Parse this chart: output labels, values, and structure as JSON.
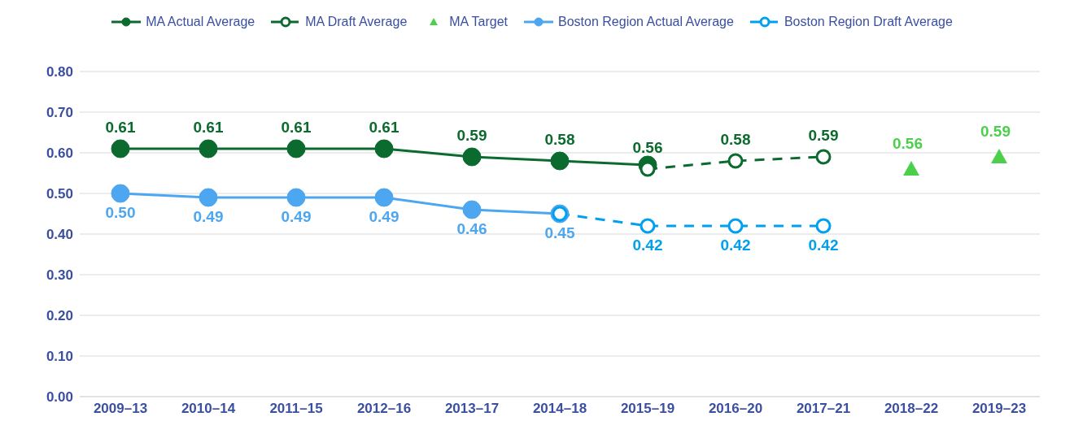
{
  "chart_data": {
    "type": "line",
    "categories": [
      "2009–13",
      "2010–14",
      "2011–15",
      "2012–16",
      "2013–17",
      "2014–18",
      "2015–19",
      "2016–20",
      "2017–21",
      "2018–22",
      "2019–23"
    ],
    "series": [
      {
        "name": "MA Actual Average",
        "color": "#0b6b2e",
        "line_style": "solid",
        "marker": "circle",
        "values": [
          0.61,
          0.61,
          0.61,
          0.61,
          0.59,
          0.58,
          0.57,
          null,
          null,
          null,
          null
        ],
        "value_labels": [
          "0.61",
          "0.61",
          "0.61",
          "0.61",
          "0.59",
          "0.58",
          null,
          null,
          null,
          null,
          null
        ]
      },
      {
        "name": "MA Draft Average",
        "color": "#0b6b2e",
        "line_style": "dashed",
        "marker": "circle",
        "values": [
          null,
          null,
          null,
          null,
          null,
          null,
          0.56,
          0.58,
          0.59,
          null,
          null
        ],
        "value_labels": [
          null,
          null,
          null,
          null,
          null,
          null,
          "0.56",
          "0.58",
          "0.59",
          null,
          null
        ]
      },
      {
        "name": "MA Target",
        "type": "scatter",
        "color": "#4cd04c",
        "marker": "triangle",
        "values": [
          null,
          null,
          null,
          null,
          null,
          null,
          null,
          null,
          null,
          0.56,
          0.59
        ],
        "value_labels": [
          null,
          null,
          null,
          null,
          null,
          null,
          null,
          null,
          null,
          "0.56",
          "0.59"
        ]
      },
      {
        "name": "Boston Region Actual Average",
        "color": "#4da6f0",
        "line_style": "solid",
        "marker": "circle",
        "values": [
          0.5,
          0.49,
          0.49,
          0.49,
          0.46,
          0.45,
          null,
          null,
          null,
          null,
          null
        ],
        "value_labels": [
          "0.50",
          "0.49",
          "0.49",
          "0.49",
          "0.46",
          "0.45",
          null,
          null,
          null,
          null,
          null
        ]
      },
      {
        "name": "Boston Region Draft Average",
        "color": "#00a0f0",
        "line_style": "dashed",
        "marker": "circle",
        "values": [
          null,
          null,
          null,
          null,
          null,
          0.45,
          0.42,
          0.42,
          0.42,
          null,
          null
        ],
        "value_labels": [
          null,
          null,
          null,
          null,
          null,
          null,
          "0.42",
          "0.42",
          "0.42",
          null,
          null
        ]
      }
    ],
    "ylim": [
      0,
      0.8
    ],
    "yticks": [
      {
        "value": 0,
        "label": "0.00"
      },
      {
        "value": 0.1,
        "label": "0.10"
      },
      {
        "value": 0.2,
        "label": "0.20"
      },
      {
        "value": 0.3,
        "label": "0.30"
      },
      {
        "value": 0.4,
        "label": "0.40"
      },
      {
        "value": 0.5,
        "label": "0.50"
      },
      {
        "value": 0.6,
        "label": "0.60"
      },
      {
        "value": 0.7,
        "label": "0.70"
      },
      {
        "value": 0.8,
        "label": "0.80"
      }
    ],
    "grid": "y",
    "legend": "top"
  }
}
